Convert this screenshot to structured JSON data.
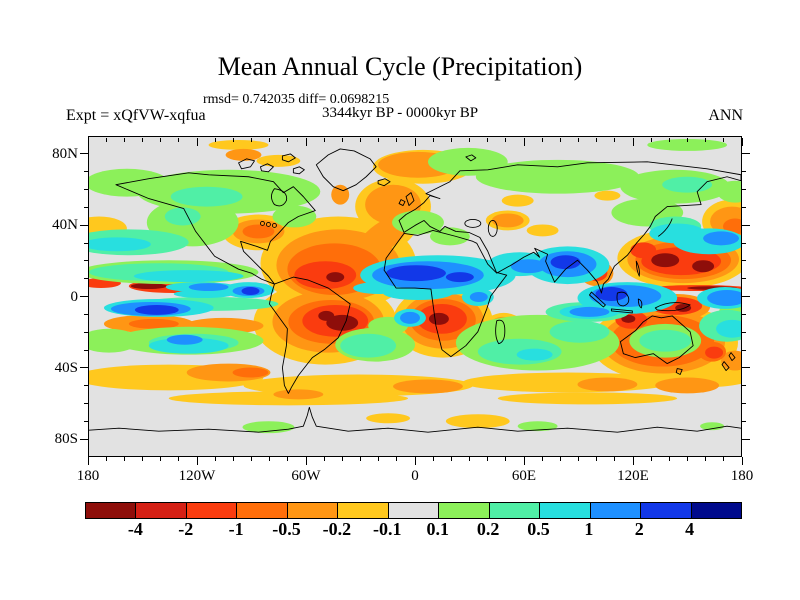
{
  "header": {
    "title": "Mean Annual Cycle (Precipitation)",
    "stats": "rmsd= 0.742035 diff= 0.0698215",
    "period": "3344kyr BP - 0000kyr BP",
    "experiment": "Expt = xQfVW-xqfua",
    "season": "ANN"
  },
  "axes": {
    "lat_labels": [
      {
        "label": "80N",
        "lat": 80
      },
      {
        "label": "40N",
        "lat": 40
      },
      {
        "label": "0",
        "lat": 0
      },
      {
        "label": "40S",
        "lat": -40
      },
      {
        "label": "80S",
        "lat": -80
      }
    ],
    "lon_labels": [
      {
        "label": "180",
        "lon": -180
      },
      {
        "label": "120W",
        "lon": -120
      },
      {
        "label": "60W",
        "lon": -60
      },
      {
        "label": "0",
        "lon": 0
      },
      {
        "label": "60E",
        "lon": 60
      },
      {
        "label": "120E",
        "lon": 120
      },
      {
        "label": "180",
        "lon": 180
      }
    ],
    "minor_step_deg": 10,
    "lat_major_step_deg": 40,
    "lon_major_step_deg": 60
  },
  "colorbar": {
    "colors": [
      "#8E0E0A",
      "#D52015",
      "#FA3C0F",
      "#FF6E0A",
      "#FF9614",
      "#FFC81E",
      "#E2E2E2",
      "#8CF05A",
      "#50EFA6",
      "#28DFDF",
      "#1E90FF",
      "#1238E8",
      "#000A8C"
    ],
    "tick_labels": [
      "-4",
      "-2",
      "-1",
      "-0.5",
      "-0.2",
      "-0.1",
      "0.1",
      "0.2",
      "0.5",
      "1",
      "2",
      "4"
    ]
  },
  "chart_data": {
    "type": "heatmap",
    "subtype": "filled-contour anomaly map on equirectangular world grid",
    "title": "Mean Annual Cycle (Precipitation)",
    "rmsd": 0.742035,
    "diff": 0.0698215,
    "period": "3344kyr BP - 0000kyr BP",
    "experiment": "xQfVW-xqfua",
    "season": "ANN",
    "lon_range": [
      -180,
      180
    ],
    "lat_range": [
      -90,
      90
    ],
    "x_tick_labels": [
      "180",
      "120W",
      "60W",
      "0",
      "60E",
      "120E",
      "180"
    ],
    "y_tick_labels": [
      "80N",
      "40N",
      "0",
      "40S",
      "80S"
    ],
    "contour_levels": [
      -4,
      -2,
      -1,
      -0.5,
      -0.2,
      -0.1,
      0.1,
      0.2,
      0.5,
      1,
      2,
      4
    ],
    "palette": [
      "#8E0E0A",
      "#D52015",
      "#FA3C0F",
      "#FF6E0A",
      "#FF9614",
      "#FFC81E",
      "#E2E2E2",
      "#8CF05A",
      "#50EFA6",
      "#28DFDF",
      "#1E90FF",
      "#1238E8",
      "#000A8C"
    ],
    "neutral_color": "#E2E2E2",
    "legend_position": "bottom",
    "features": [
      "Strong negative (red/orange) anomaly over tropical North Atlantic and Caribbean",
      "Strong negative anomaly centered on central South America (Brazil)",
      "Strong negative anomaly over southern Africa",
      "Large negative anomaly over western tropical North Pacific east of the Philippines",
      "Negative ring around Australia with weak positive (green) interior",
      "Strong positive (blue) anomaly across Sahara/Sahel and Arabian Peninsula",
      "Strong positive anomaly over India, with negative spot near Bay of Bengal/Burma",
      "Positive anomaly over Indonesia; negative over New Guinea",
      "Narrow alternating negative/positive zonal bands along the equatorial Pacific",
      "Weak negative (yellow) zonal bands across the Southern Ocean (40S-60S)",
      "Weak positive (green) anomalies over high-latitude North America, Siberia and northern Europe",
      "Negative anomalies over Norwegian Sea / North Atlantic subpolar region"
    ]
  }
}
